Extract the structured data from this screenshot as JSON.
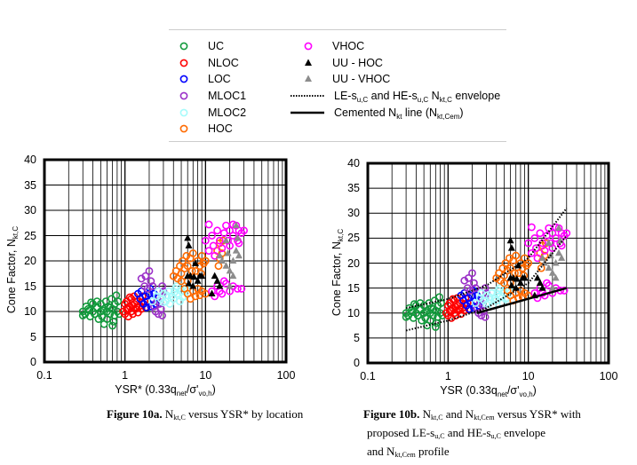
{
  "legend": {
    "items": [
      {
        "label": [
          {
            "t": "UC"
          }
        ],
        "marker": "circle",
        "color": "#129a3c"
      },
      {
        "label": [
          {
            "t": "NLOC"
          }
        ],
        "marker": "circle",
        "color": "#ff0000"
      },
      {
        "label": [
          {
            "t": "LOC"
          }
        ],
        "marker": "circle",
        "color": "#0000ff"
      },
      {
        "label": [
          {
            "t": "MLOC1"
          }
        ],
        "marker": "circle",
        "color": "#9b30c8"
      },
      {
        "label": [
          {
            "t": "MLOC2"
          }
        ],
        "marker": "circle",
        "color": "#a6fbfb"
      },
      {
        "label": [
          {
            "t": "HOC"
          }
        ],
        "marker": "circle",
        "color": "#ff6a00"
      },
      {
        "label": [
          {
            "t": "VHOC"
          }
        ],
        "marker": "circle",
        "color": "#ff00ff"
      },
      {
        "label": [
          {
            "t": "UU - HOC"
          }
        ],
        "marker": "triangle",
        "color": "#000000"
      },
      {
        "label": [
          {
            "t": "UU - VHOC"
          }
        ],
        "marker": "triangle",
        "color": "#8c8c8c"
      },
      {
        "label": [
          {
            "t": "LE-s"
          },
          {
            "t": "u,C",
            "sub": true
          },
          {
            "t": " and HE-s"
          },
          {
            "t": "u,C",
            "sub": true
          },
          {
            "t": " N"
          },
          {
            "t": "kt,C",
            "sub": true
          },
          {
            "t": " envelope"
          }
        ],
        "marker": "dotted",
        "color": "#000000"
      },
      {
        "label": [
          {
            "t": "Cemented N"
          },
          {
            "t": "kt",
            "sub": true
          },
          {
            "t": " line (N"
          },
          {
            "t": "kt,Cem",
            "sub": true
          },
          {
            "t": ")"
          }
        ],
        "marker": "solid",
        "color": "#000000"
      }
    ]
  },
  "chart_data": [
    {
      "id": "10a",
      "type": "scatter",
      "xscale": "log",
      "xlim": [
        0.1,
        100
      ],
      "ylim": [
        0,
        40
      ],
      "xticks": [
        "0.1",
        "1",
        "10",
        "100"
      ],
      "yticks": [
        "0",
        "5",
        "10",
        "15",
        "20",
        "25",
        "30",
        "35",
        "40"
      ],
      "xlabel": [
        {
          "t": "YSR* (0.33q"
        },
        {
          "t": "net",
          "sub": true
        },
        {
          "t": "/σ'"
        },
        {
          "t": "vo,h",
          "sub": true
        },
        {
          "t": ")"
        }
      ],
      "ylabel": [
        {
          "t": "Cone Factor, N"
        },
        {
          "t": "kt,C",
          "sub": true
        }
      ],
      "grid": true,
      "caption": [
        [
          {
            "t": "Figure 10a.",
            "b": true
          },
          {
            "t": " N"
          },
          {
            "t": "kt,C",
            "sub": true
          },
          {
            "t": " versus YSR* by location"
          }
        ]
      ],
      "show_lines": false
    },
    {
      "id": "10b",
      "type": "scatter",
      "xscale": "log",
      "xlim": [
        0.1,
        100
      ],
      "ylim": [
        0,
        40
      ],
      "xticks": [
        "0.1",
        "1",
        "10",
        "100"
      ],
      "yticks": [
        "0",
        "5",
        "10",
        "15",
        "20",
        "25",
        "30",
        "35",
        "40"
      ],
      "xlabel": [
        {
          "t": "YSR (0.33q"
        },
        {
          "t": "net",
          "sub": true
        },
        {
          "t": "/σ'"
        },
        {
          "t": "vo,h",
          "sub": true
        },
        {
          "t": ")"
        }
      ],
      "ylabel": [
        {
          "t": "Cone Factor, N"
        },
        {
          "t": "kt,C",
          "sub": true
        }
      ],
      "grid": true,
      "caption": [
        [
          {
            "t": "Figure 10b.",
            "b": true
          },
          {
            "t": " N"
          },
          {
            "t": "kt,C",
            "sub": true
          },
          {
            "t": " and N"
          },
          {
            "t": "kt,Cem",
            "sub": true
          },
          {
            "t": " versus YSR* with"
          }
        ],
        [
          {
            "t": "proposed LE-s"
          },
          {
            "t": "u,C",
            "sub": true
          },
          {
            "t": " and HE-s"
          },
          {
            "t": "u,C",
            "sub": true
          },
          {
            "t": " envelope"
          }
        ],
        [
          {
            "t": "and N"
          },
          {
            "t": "kt,Cem",
            "sub": true
          },
          {
            "t": " profile"
          }
        ]
      ],
      "show_lines": true,
      "lines": [
        {
          "name": "HE-su,C envelope",
          "style": "dotted",
          "x": [
            0.3,
            1,
            3,
            10,
            30
          ],
          "y": [
            11,
            12.8,
            15.5,
            21,
            31
          ]
        },
        {
          "name": "LE-su,C envelope",
          "style": "dotted",
          "x": [
            0.3,
            1,
            3,
            10,
            30
          ],
          "y": [
            6.5,
            8.5,
            11,
            16,
            25.5
          ]
        },
        {
          "name": "Cemented Nkt line",
          "style": "solid",
          "x": [
            2.3,
            30
          ],
          "y": [
            10,
            15
          ]
        }
      ]
    }
  ],
  "series": [
    {
      "name": "UC",
      "marker": "circle",
      "color": "#129a3c",
      "points": [
        [
          0.3,
          10
        ],
        [
          0.32,
          9.5
        ],
        [
          0.33,
          11
        ],
        [
          0.35,
          10.5
        ],
        [
          0.37,
          9
        ],
        [
          0.4,
          10
        ],
        [
          0.4,
          11.5
        ],
        [
          0.42,
          9.5
        ],
        [
          0.45,
          10.8
        ],
        [
          0.47,
          8.5
        ],
        [
          0.5,
          10
        ],
        [
          0.5,
          11.5
        ],
        [
          0.52,
          9
        ],
        [
          0.55,
          10.5
        ],
        [
          0.55,
          7.5
        ],
        [
          0.58,
          12
        ],
        [
          0.6,
          10
        ],
        [
          0.6,
          8.5
        ],
        [
          0.62,
          11
        ],
        [
          0.65,
          9.5
        ],
        [
          0.68,
          12.5
        ],
        [
          0.7,
          10.5
        ],
        [
          0.7,
          7.2
        ],
        [
          0.72,
          8
        ],
        [
          0.75,
          11.5
        ],
        [
          0.78,
          13.2
        ],
        [
          0.8,
          10
        ],
        [
          0.82,
          12
        ],
        [
          0.85,
          9.5
        ],
        [
          0.45,
          12
        ],
        [
          0.36,
          10.2
        ],
        [
          0.66,
          10.8
        ],
        [
          0.3,
          9.2
        ],
        [
          0.38,
          11.8
        ],
        [
          0.53,
          10.2
        ],
        [
          0.74,
          9.2
        ]
      ]
    },
    {
      "name": "NLOC",
      "marker": "circle",
      "color": "#ff0000",
      "points": [
        [
          0.95,
          10
        ],
        [
          1,
          9.5
        ],
        [
          1,
          11.5
        ],
        [
          1.05,
          12
        ],
        [
          1.1,
          10.5
        ],
        [
          1.1,
          9
        ],
        [
          1.15,
          11
        ],
        [
          1.2,
          12.5
        ],
        [
          1.2,
          10
        ],
        [
          1.25,
          9.5
        ],
        [
          1.3,
          11.5
        ],
        [
          1.3,
          13
        ],
        [
          1.35,
          10.5
        ],
        [
          1.4,
          12
        ],
        [
          1.45,
          9.8
        ],
        [
          1.5,
          11
        ],
        [
          1.55,
          12.5
        ],
        [
          1.6,
          10.5
        ],
        [
          1.65,
          13
        ],
        [
          1.7,
          11.5
        ],
        [
          1.75,
          12
        ],
        [
          1.8,
          10.8
        ],
        [
          1.05,
          10.5
        ],
        [
          1.15,
          12.8
        ],
        [
          1.4,
          10.8
        ],
        [
          1.25,
          11.2
        ],
        [
          1.6,
          11.8
        ]
      ]
    },
    {
      "name": "LOC",
      "marker": "circle",
      "color": "#0000ff",
      "points": [
        [
          1.45,
          13.5
        ],
        [
          1.55,
          12.5
        ],
        [
          1.6,
          14
        ],
        [
          1.7,
          11.5
        ],
        [
          1.8,
          13
        ],
        [
          1.9,
          12
        ],
        [
          2,
          13.5
        ],
        [
          2.1,
          11
        ],
        [
          2.2,
          12.5
        ],
        [
          2.3,
          13.5
        ],
        [
          2.4,
          11.5
        ],
        [
          2.5,
          12.8
        ],
        [
          1.85,
          10.8
        ],
        [
          2.05,
          14.5
        ]
      ]
    },
    {
      "name": "MLOC1",
      "marker": "circle",
      "color": "#9b30c8",
      "points": [
        [
          1.6,
          16.5
        ],
        [
          1.75,
          15
        ],
        [
          1.8,
          17
        ],
        [
          1.9,
          14.5
        ],
        [
          2,
          18
        ],
        [
          2.1,
          16
        ],
        [
          2.2,
          15
        ],
        [
          2.3,
          11
        ],
        [
          2.4,
          10
        ],
        [
          2.5,
          12
        ],
        [
          2.6,
          9.5
        ],
        [
          2.8,
          10.5
        ],
        [
          2.9,
          13
        ],
        [
          2.9,
          15
        ],
        [
          3,
          14
        ],
        [
          2.9,
          9.2
        ],
        [
          2.7,
          11.5
        ]
      ]
    },
    {
      "name": "MLOC2",
      "marker": "circle",
      "color": "#a6fbfb",
      "points": [
        [
          2.2,
          12
        ],
        [
          2.5,
          13
        ],
        [
          2.8,
          12.5
        ],
        [
          3,
          13.5
        ],
        [
          3.2,
          12
        ],
        [
          3.5,
          14
        ],
        [
          3.8,
          13
        ],
        [
          4,
          12.5
        ],
        [
          4.2,
          14.5
        ],
        [
          4.5,
          13.5
        ],
        [
          4.8,
          12
        ],
        [
          5,
          14
        ],
        [
          5.3,
          15
        ],
        [
          5.5,
          13
        ],
        [
          5.8,
          14.5
        ],
        [
          3.6,
          11.5
        ],
        [
          4.4,
          15
        ],
        [
          3,
          11.8
        ],
        [
          5.2,
          12.8
        ],
        [
          2.6,
          14
        ],
        [
          3.3,
          13.2
        ],
        [
          4.1,
          13.8
        ]
      ]
    },
    {
      "name": "HOC",
      "marker": "circle",
      "color": "#ff6a00",
      "points": [
        [
          4,
          17
        ],
        [
          4.3,
          18
        ],
        [
          4.5,
          16.5
        ],
        [
          4.8,
          19
        ],
        [
          5,
          17.5
        ],
        [
          5.2,
          20
        ],
        [
          5.5,
          18.5
        ],
        [
          5.8,
          21
        ],
        [
          6,
          19
        ],
        [
          6.5,
          20.5
        ],
        [
          7,
          21.5
        ],
        [
          7.5,
          18
        ],
        [
          8,
          20
        ],
        [
          8.5,
          19
        ],
        [
          9,
          21
        ],
        [
          9.5,
          19.5
        ],
        [
          10,
          20
        ],
        [
          6,
          13.5
        ],
        [
          6.5,
          12.5
        ],
        [
          7,
          14
        ],
        [
          7.5,
          13
        ],
        [
          8,
          14.5
        ],
        [
          8.5,
          13.2
        ],
        [
          9,
          14
        ],
        [
          10,
          13.5
        ],
        [
          5.5,
          14.5
        ],
        [
          6,
          16
        ],
        [
          5,
          16
        ],
        [
          14,
          22
        ],
        [
          15,
          23.5
        ],
        [
          16,
          21.5
        ],
        [
          15,
          20.5
        ],
        [
          16.5,
          24
        ],
        [
          14.5,
          19
        ],
        [
          6.8,
          18
        ],
        [
          8.8,
          17.5
        ]
      ]
    },
    {
      "name": "VHOC",
      "marker": "circle",
      "color": "#ff00ff",
      "points": [
        [
          10,
          24
        ],
        [
          11,
          22
        ],
        [
          11,
          27.2
        ],
        [
          12,
          25
        ],
        [
          13,
          21
        ],
        [
          14,
          26
        ],
        [
          15,
          24
        ],
        [
          16,
          22.5
        ],
        [
          17,
          25.5
        ],
        [
          18,
          27
        ],
        [
          19,
          24
        ],
        [
          20,
          26
        ],
        [
          22,
          25
        ],
        [
          24,
          27
        ],
        [
          25,
          24
        ],
        [
          26,
          26
        ],
        [
          28,
          25.5
        ],
        [
          30,
          26
        ],
        [
          20,
          23
        ],
        [
          22,
          27.2
        ],
        [
          12,
          14
        ],
        [
          13,
          13
        ],
        [
          14,
          15
        ],
        [
          15,
          14
        ],
        [
          16,
          13.5
        ],
        [
          18,
          15.5
        ],
        [
          20,
          14
        ],
        [
          22,
          15
        ],
        [
          25,
          14.5
        ],
        [
          28,
          14.5
        ],
        [
          17,
          16
        ],
        [
          12.5,
          23
        ],
        [
          26,
          23.5
        ]
      ]
    },
    {
      "name": "UU - HOC",
      "marker": "triangle",
      "color": "#000000",
      "points": [
        [
          6,
          24.5
        ],
        [
          6.2,
          23
        ],
        [
          6,
          17
        ],
        [
          6.5,
          17
        ],
        [
          7,
          15
        ],
        [
          7.5,
          19.5
        ],
        [
          8,
          16
        ],
        [
          8.5,
          17
        ],
        [
          9,
          17
        ],
        [
          12,
          13.5
        ],
        [
          13,
          17
        ],
        [
          14,
          16
        ],
        [
          15,
          15
        ],
        [
          6.2,
          15.5
        ],
        [
          7.2,
          16.8
        ]
      ]
    },
    {
      "name": "UU - VHOC",
      "marker": "triangle",
      "color": "#8c8c8c",
      "points": [
        [
          15,
          21
        ],
        [
          16,
          20
        ],
        [
          18,
          19
        ],
        [
          20,
          18
        ],
        [
          22,
          17
        ],
        [
          24,
          22
        ],
        [
          25,
          24.5
        ],
        [
          26,
          21
        ],
        [
          20,
          15
        ],
        [
          24,
          27
        ],
        [
          18,
          24
        ],
        [
          22,
          20
        ],
        [
          19,
          21.5
        ]
      ]
    }
  ]
}
